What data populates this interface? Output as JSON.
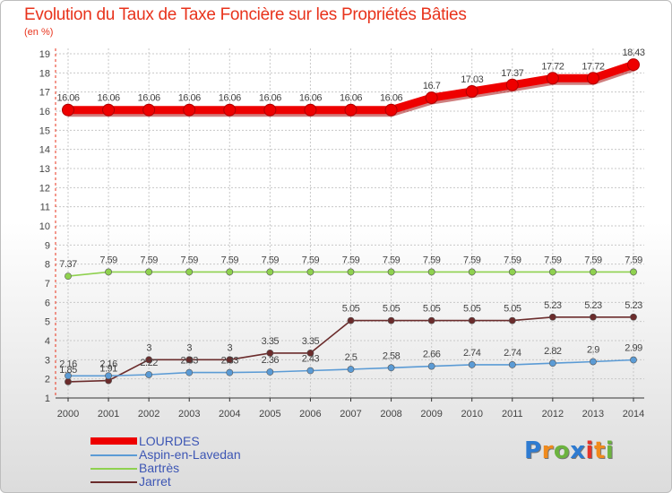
{
  "title": "Evolution du Taux de Taxe Foncière sur les Propriétés Bâties",
  "subtitle": "(en %)",
  "logo_text": "Proxiti",
  "colors": {
    "title": "#e8331c",
    "grid": "#c8c8c8",
    "axis": "#333333",
    "label_text": "#444444",
    "legend_text": "#3d56b4"
  },
  "chart_data": {
    "type": "line",
    "title": "Evolution du Taux de Taxe Foncière sur les Propriétés Bâties",
    "ylabel": "(en %)",
    "xlabel": "",
    "ylim": [
      1,
      19
    ],
    "yticks": [
      1,
      2,
      3,
      4,
      5,
      6,
      7,
      8,
      9,
      10,
      11,
      12,
      13,
      14,
      15,
      16,
      17,
      18,
      19
    ],
    "grid": true,
    "legend_position": "bottom-left",
    "x": [
      "2000",
      "2001",
      "2002",
      "2003",
      "2004",
      "2005",
      "2006",
      "2007",
      "2008",
      "2009",
      "2010",
      "2011",
      "2012",
      "2013",
      "2014"
    ],
    "series": [
      {
        "name": "LOURDES",
        "color": "#ee0000",
        "style": "thick",
        "values": [
          16.06,
          16.06,
          16.06,
          16.06,
          16.06,
          16.06,
          16.06,
          16.06,
          16.06,
          16.7,
          17.03,
          17.37,
          17.72,
          17.72,
          18.43
        ],
        "labels": [
          "16.06",
          "16.06",
          "16.06",
          "16.06",
          "16.06",
          "16.06",
          "16.06",
          "16.06",
          "16.06",
          "16.7",
          "17.03",
          "17.37",
          "17.72",
          "17.72",
          "18.43"
        ]
      },
      {
        "name": "Aspin-en-Lavedan",
        "color": "#5b9bd5",
        "style": "thin",
        "values": [
          2.16,
          2.16,
          2.22,
          2.33,
          2.33,
          2.36,
          2.43,
          2.5,
          2.58,
          2.66,
          2.74,
          2.74,
          2.82,
          2.9,
          2.99
        ],
        "labels": [
          "2.16",
          "2.16",
          "2.22",
          "2.33",
          "2.33",
          "2.36",
          "2.43",
          "2.5",
          "2.58",
          "2.66",
          "2.74",
          "2.74",
          "2.82",
          "2.9",
          "2.99"
        ]
      },
      {
        "name": "Bartrès",
        "color": "#8fd14f",
        "style": "thin",
        "values": [
          7.37,
          7.59,
          7.59,
          7.59,
          7.59,
          7.59,
          7.59,
          7.59,
          7.59,
          7.59,
          7.59,
          7.59,
          7.59,
          7.59,
          7.59
        ],
        "labels": [
          "7.37",
          "7.59",
          "7.59",
          "7.59",
          "7.59",
          "7.59",
          "7.59",
          "7.59",
          "7.59",
          "7.59",
          "7.59",
          "7.59",
          "7.59",
          "7.59",
          "7.59"
        ]
      },
      {
        "name": "Jarret",
        "color": "#6b2c2c",
        "style": "thin",
        "values": [
          1.85,
          1.91,
          3,
          3,
          3,
          3.35,
          3.35,
          5.05,
          5.05,
          5.05,
          5.05,
          5.05,
          5.23,
          5.23,
          5.23
        ],
        "labels": [
          "1.85",
          "1.91",
          "3",
          "3",
          "3",
          "3.35",
          "3.35",
          "5.05",
          "5.05",
          "5.05",
          "5.05",
          "5.05",
          "5.23",
          "5.23",
          "5.23"
        ]
      }
    ]
  }
}
